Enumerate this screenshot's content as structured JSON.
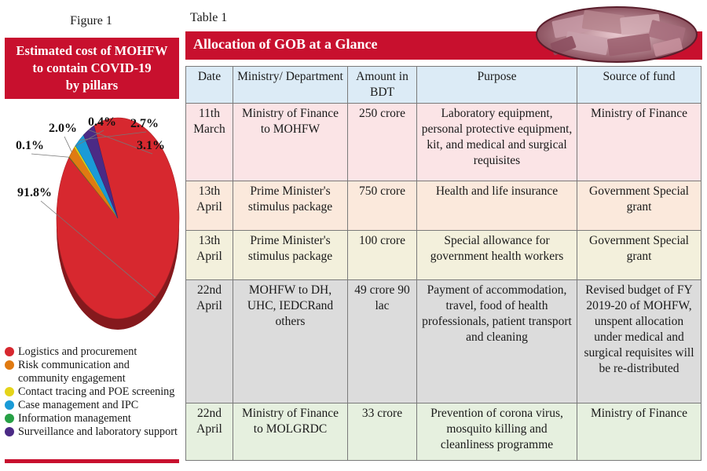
{
  "figure": {
    "label": "Figure 1",
    "title_lines": [
      "Estimated cost of MOHFW",
      "to contain COVID-19",
      "by pillars"
    ]
  },
  "chart_data": {
    "type": "pie",
    "title": "Estimated cost of MOHFW to contain COVID-19 by pillars",
    "categories": [
      "Logistics and procurement",
      "Risk communication and community engagement",
      "Contact tracing and POE screening",
      "Case management and IPC",
      "Information management",
      "Surveillance and laboratory support"
    ],
    "values": [
      91.8,
      2.0,
      0.4,
      2.7,
      0.1,
      3.1
    ],
    "labels": [
      "91.8%",
      "2.0%",
      "0.4%",
      "2.7%",
      "0.1%",
      "3.1%"
    ],
    "colors": [
      "#d7282f",
      "#e07a12",
      "#e5d41a",
      "#1a9bd7",
      "#27a045",
      "#4b2a85"
    ],
    "legend_placement": "bottom"
  },
  "legend": [
    {
      "label": "Logistics and procurement",
      "color": "#d7282f"
    },
    {
      "label": "Risk communication and community engagement",
      "color": "#e07a12"
    },
    {
      "label": "Contact tracing and POE screening",
      "color": "#e5d41a"
    },
    {
      "label": "Case management and IPC",
      "color": "#1a9bd7"
    },
    {
      "label": "Information management",
      "color": "#27a045"
    },
    {
      "label": "Surveillance and laboratory support",
      "color": "#4b2a85"
    }
  ],
  "table": {
    "label": "Table 1",
    "title": "Allocation of GOB at a Glance",
    "image": "money-stack-photo",
    "headers": [
      "Date",
      "Ministry/ Department",
      "Amount in BDT",
      "Purpose",
      "Source of fund"
    ],
    "rows": [
      [
        "11th March",
        "Ministry of Finance to MOHFW",
        "250 crore",
        "Laboratory equipment, personal protective equipment, kit, and medical and surgical requisites",
        "Ministry of Finance"
      ],
      [
        "13th April",
        "Prime Minister's stimulus package",
        "750 crore",
        "Health and life insurance",
        "Government Special grant"
      ],
      [
        "13th April",
        "Prime Minister's stimulus package",
        "100 crore",
        "Special allowance for government health workers",
        "Government Special grant"
      ],
      [
        "22nd April",
        "MOHFW to DH, UHC, IEDCRand others",
        "49 crore 90 lac",
        "Payment of accommodation, travel, food of health professionals, patient transport and cleaning",
        "Revised budget of FY 2019-20 of MOHFW, unspent allocation under medical and surgical requisites will be re-distributed"
      ],
      [
        "22nd April",
        "Ministry of Finance to MOLGRDC",
        "33 crore",
        "Prevention of corona virus, mosquito killing and cleanliness programme",
        "Ministry of Finance"
      ]
    ]
  },
  "colors": {
    "accent_red": "#c8102e",
    "header_bg": "#dcebf6"
  }
}
